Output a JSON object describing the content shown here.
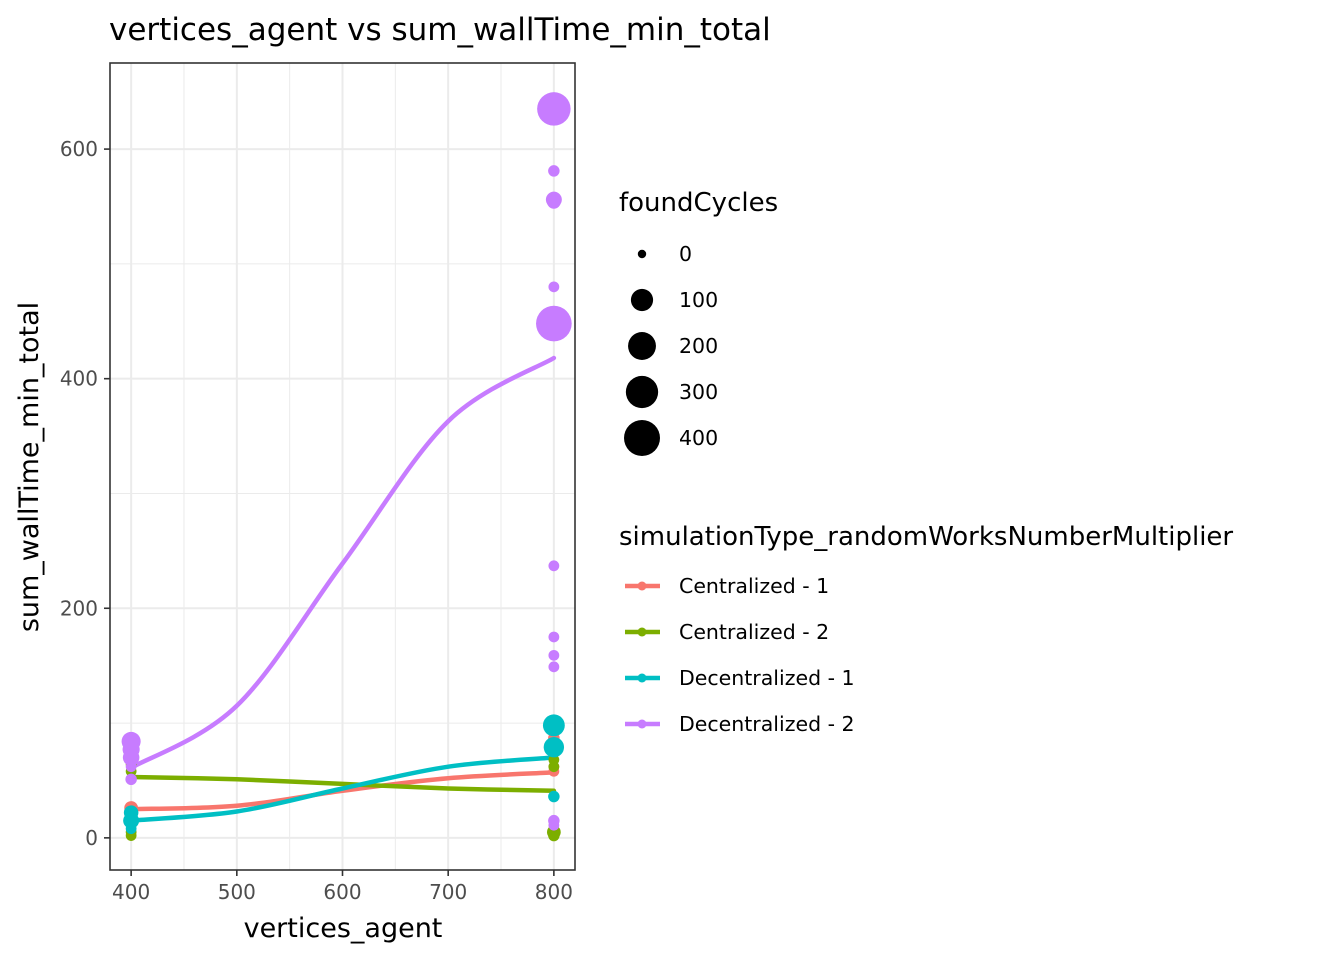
{
  "chart_data": {
    "type": "scatter",
    "title": "vertices_agent  vs  sum_wallTime_min_total",
    "xlabel": "vertices_agent",
    "ylabel": "sum_wallTime_min_total",
    "xlim": [
      380,
      820
    ],
    "ylim": [
      -28,
      675
    ],
    "x_ticks": [
      400,
      500,
      600,
      700,
      800
    ],
    "y_ticks": [
      0,
      200,
      400,
      600
    ],
    "grid": true,
    "legend_position": "right",
    "size_legend": {
      "title": "foundCycles",
      "entries": [
        {
          "label": "0",
          "value": 0
        },
        {
          "label": "100",
          "value": 100
        },
        {
          "label": "200",
          "value": 200
        },
        {
          "label": "300",
          "value": 300
        },
        {
          "label": "400",
          "value": 400
        }
      ]
    },
    "color_legend": {
      "title": "simulationType_randomWorksNumberMultiplier"
    },
    "series": [
      {
        "name": "Centralized - 1",
        "color": "#F8766D",
        "points": [
          {
            "x": 400,
            "y": 26,
            "size": 15
          },
          {
            "x": 400,
            "y": 24,
            "size": 5
          },
          {
            "x": 400,
            "y": 20,
            "size": 3
          },
          {
            "x": 800,
            "y": 87,
            "size": 5
          },
          {
            "x": 800,
            "y": 62,
            "size": 3
          },
          {
            "x": 800,
            "y": 58,
            "size": 3
          }
        ],
        "fit": [
          {
            "x": 400,
            "y": 25
          },
          {
            "x": 500,
            "y": 28
          },
          {
            "x": 600,
            "y": 41
          },
          {
            "x": 700,
            "y": 52
          },
          {
            "x": 800,
            "y": 57
          }
        ]
      },
      {
        "name": "Centralized - 2",
        "color": "#7CAE00",
        "points": [
          {
            "x": 400,
            "y": 64,
            "size": 3
          },
          {
            "x": 400,
            "y": 58,
            "size": 3
          },
          {
            "x": 400,
            "y": 5,
            "size": 3
          },
          {
            "x": 400,
            "y": 2,
            "size": 3
          },
          {
            "x": 800,
            "y": 75,
            "size": 3
          },
          {
            "x": 800,
            "y": 68,
            "size": 3
          },
          {
            "x": 800,
            "y": 62,
            "size": 3
          },
          {
            "x": 800,
            "y": 5,
            "size": 15
          },
          {
            "x": 800,
            "y": 2,
            "size": 5
          }
        ],
        "fit": [
          {
            "x": 400,
            "y": 53
          },
          {
            "x": 500,
            "y": 51
          },
          {
            "x": 600,
            "y": 47
          },
          {
            "x": 700,
            "y": 43
          },
          {
            "x": 800,
            "y": 41
          }
        ]
      },
      {
        "name": "Decentralized - 1",
        "color": "#00BFC4",
        "points": [
          {
            "x": 400,
            "y": 22,
            "size": 20
          },
          {
            "x": 400,
            "y": 15,
            "size": 30
          },
          {
            "x": 400,
            "y": 8,
            "size": 3
          },
          {
            "x": 800,
            "y": 98,
            "size": 95
          },
          {
            "x": 800,
            "y": 79,
            "size": 75
          },
          {
            "x": 800,
            "y": 36,
            "size": 5
          }
        ],
        "fit": [
          {
            "x": 400,
            "y": 15
          },
          {
            "x": 500,
            "y": 23
          },
          {
            "x": 600,
            "y": 43
          },
          {
            "x": 700,
            "y": 62
          },
          {
            "x": 800,
            "y": 70
          }
        ]
      },
      {
        "name": "Decentralized - 2",
        "color": "#C77CFF",
        "points": [
          {
            "x": 400,
            "y": 84,
            "size": 60
          },
          {
            "x": 400,
            "y": 77,
            "size": 40
          },
          {
            "x": 400,
            "y": 70,
            "size": 35
          },
          {
            "x": 400,
            "y": 62,
            "size": 3
          },
          {
            "x": 400,
            "y": 51,
            "size": 5
          },
          {
            "x": 800,
            "y": 635,
            "size": 330
          },
          {
            "x": 800,
            "y": 581,
            "size": 5
          },
          {
            "x": 800,
            "y": 556,
            "size": 30
          },
          {
            "x": 800,
            "y": 554,
            "size": 15
          },
          {
            "x": 800,
            "y": 480,
            "size": 3
          },
          {
            "x": 800,
            "y": 448,
            "size": 390
          },
          {
            "x": 800,
            "y": 237,
            "size": 3
          },
          {
            "x": 800,
            "y": 175,
            "size": 3
          },
          {
            "x": 800,
            "y": 159,
            "size": 3
          },
          {
            "x": 800,
            "y": 149,
            "size": 3
          },
          {
            "x": 800,
            "y": 15,
            "size": 5
          },
          {
            "x": 800,
            "y": 11,
            "size": 3
          }
        ],
        "fit": [
          {
            "x": 400,
            "y": 61
          },
          {
            "x": 500,
            "y": 115
          },
          {
            "x": 600,
            "y": 239
          },
          {
            "x": 700,
            "y": 363
          },
          {
            "x": 800,
            "y": 418
          }
        ]
      }
    ]
  }
}
